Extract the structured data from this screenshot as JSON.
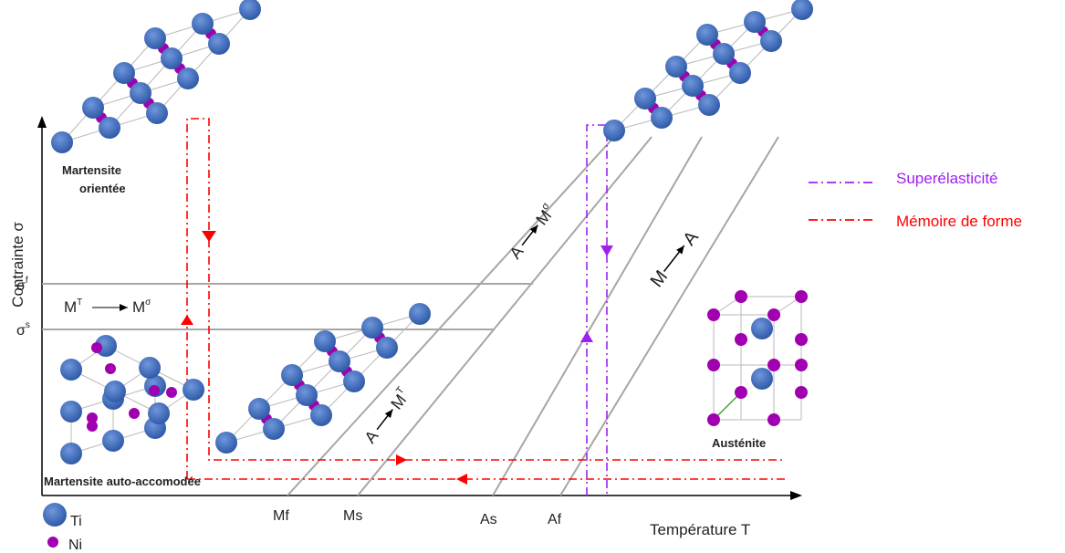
{
  "axes": {
    "y_label": "Contrainte σ",
    "x_label": "Température T",
    "y_ticks": {
      "sigma_f": "σ",
      "sigma_f_sup": "f",
      "sigma_s": "σ",
      "sigma_s_sup": "s"
    },
    "x_ticks": [
      "Mf",
      "Ms",
      "As",
      "Af"
    ]
  },
  "transformations": {
    "mt_to_msigma": {
      "left": "M",
      "left_sup": "T",
      "right": "M",
      "right_sup": "σ"
    },
    "a_to_msigma": {
      "left": "A",
      "right": "M",
      "right_sup": "σ"
    },
    "a_to_mt": {
      "left": "A",
      "right": "M",
      "right_sup": "T"
    },
    "m_to_a": {
      "left": "M",
      "right": "A"
    }
  },
  "phases": {
    "martensite_oriented_line1": "Martensite",
    "martensite_oriented_line2": "orientée",
    "martensite_self": "Martensite auto-accomodée",
    "austenite": "Austénite"
  },
  "legend": {
    "superelasticity": {
      "label": "Superélasticité",
      "color": "#a020f0"
    },
    "shape_memory": {
      "label": "Mémoire de forme",
      "color": "#ff0000"
    }
  },
  "atoms": {
    "ti": {
      "label": "Ti",
      "color": "#4472c4"
    },
    "ni": {
      "label": "Ni",
      "color": "#a000b0"
    }
  }
}
